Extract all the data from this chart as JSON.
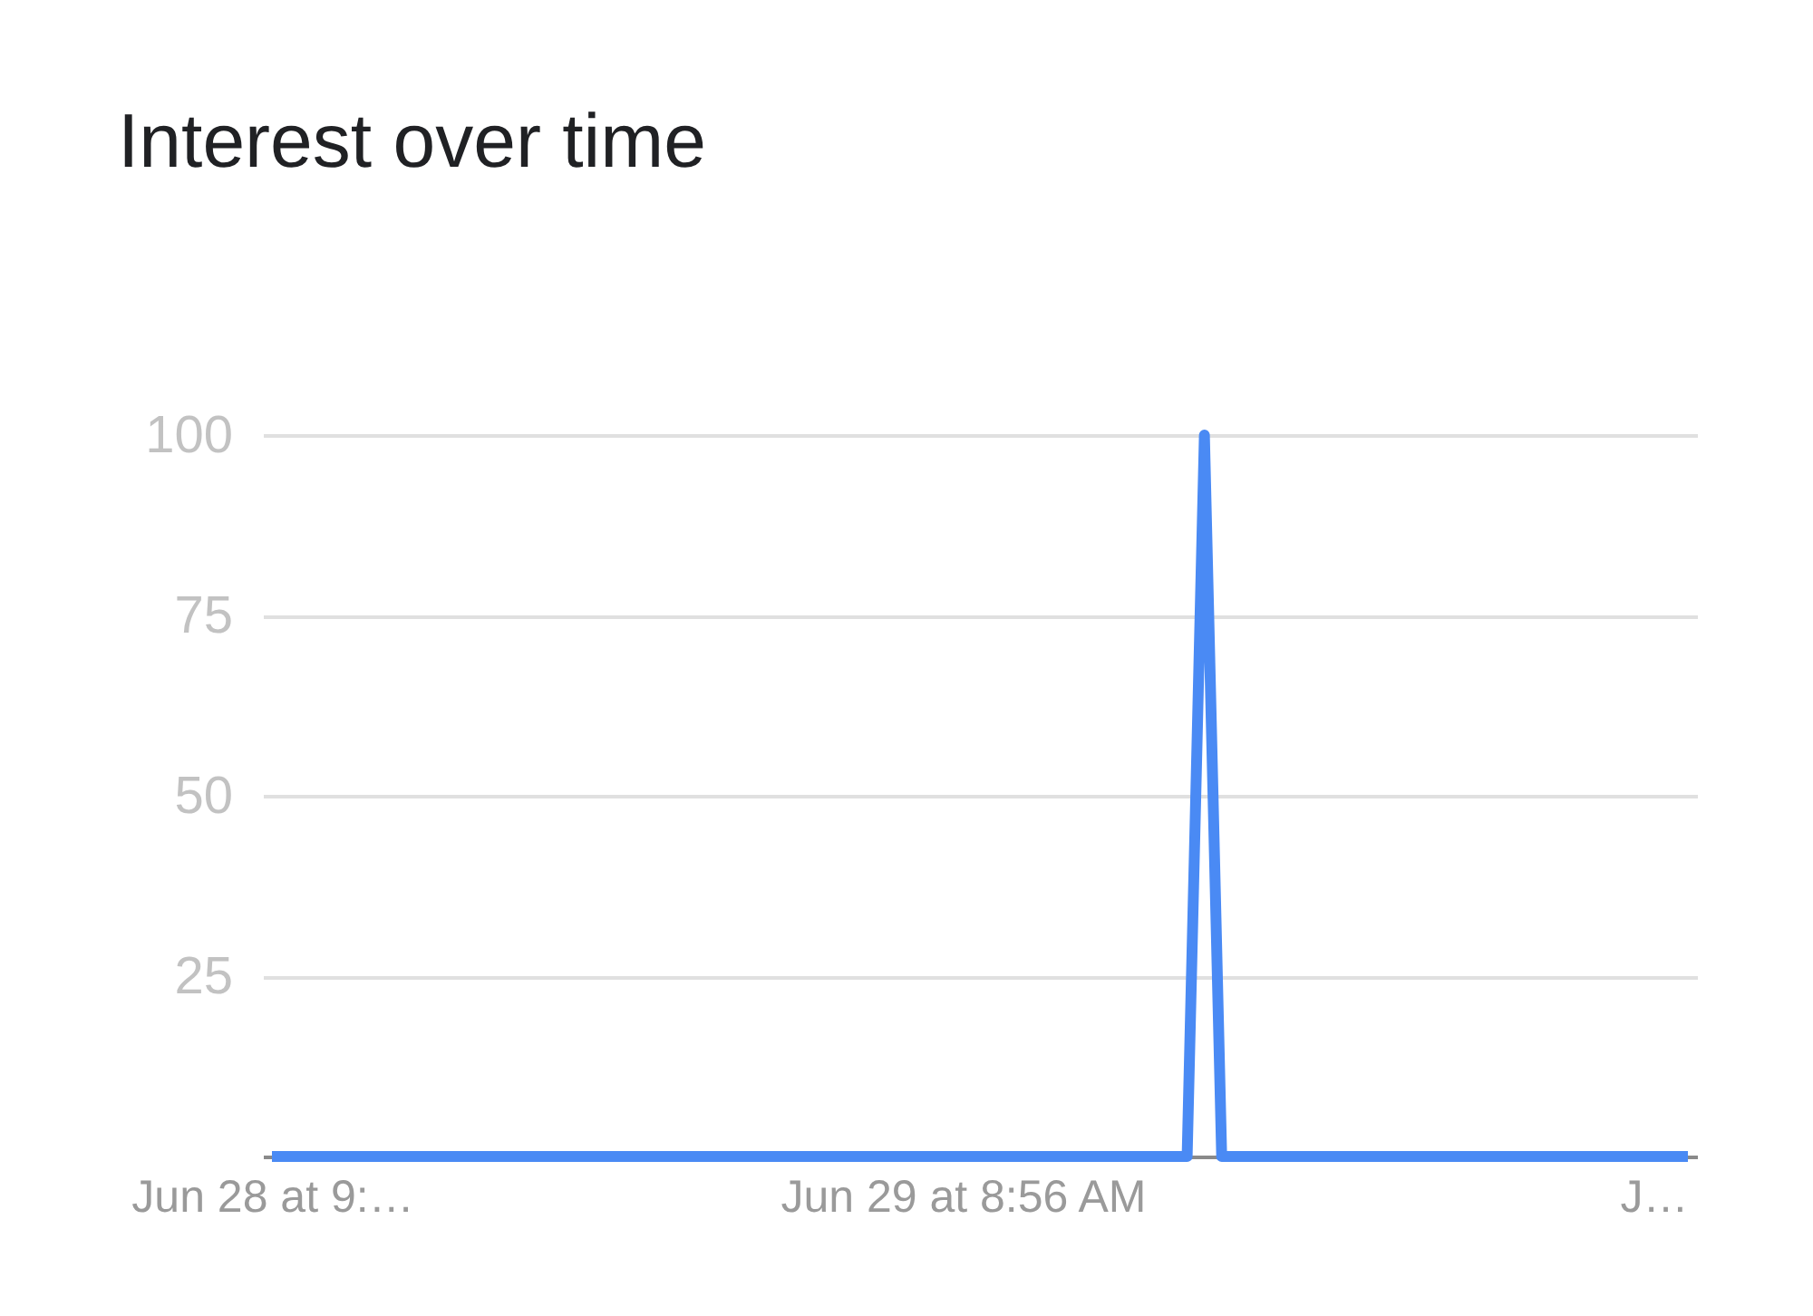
{
  "chart_data": {
    "type": "line",
    "title": "Interest over time",
    "categories": [
      "Jun 28 at 9:…",
      null,
      null,
      null,
      null,
      null,
      null,
      null,
      null,
      null,
      null,
      null,
      null,
      null,
      null,
      null,
      null,
      null,
      null,
      null,
      null,
      null,
      null,
      null,
      null,
      null,
      null,
      null,
      null,
      null,
      null,
      null,
      null,
      null,
      null,
      null,
      null,
      null,
      null,
      null,
      "Jun 29 at 8:56 AM",
      null,
      null,
      null,
      null,
      null,
      null,
      null,
      null,
      null,
      null,
      null,
      null,
      null,
      null,
      null,
      null,
      null,
      null,
      null,
      null,
      null,
      null,
      null,
      null,
      null,
      null,
      null,
      null,
      null,
      null,
      null,
      null,
      null,
      null,
      null,
      null,
      null,
      null,
      null,
      "J…",
      null,
      null
    ],
    "series": [
      {
        "color": "#4a8af4",
        "values": [
          0,
          0,
          0,
          0,
          0,
          0,
          0,
          0,
          0,
          0,
          0,
          0,
          0,
          0,
          0,
          0,
          0,
          0,
          0,
          0,
          0,
          0,
          0,
          0,
          0,
          0,
          0,
          0,
          0,
          0,
          0,
          0,
          0,
          0,
          0,
          0,
          0,
          0,
          0,
          0,
          0,
          0,
          0,
          0,
          0,
          0,
          0,
          0,
          0,
          0,
          0,
          0,
          0,
          0,
          100,
          0,
          0,
          0,
          0,
          0,
          0,
          0,
          0,
          0,
          0,
          0,
          0,
          0,
          0,
          0,
          0,
          0,
          0,
          0,
          0,
          0,
          0,
          0,
          0,
          0,
          0,
          0,
          0
        ]
      }
    ],
    "ylim": [
      0,
      100
    ],
    "yticks": [
      25,
      50,
      75,
      100
    ],
    "grid": "y",
    "line_style": "solid"
  }
}
